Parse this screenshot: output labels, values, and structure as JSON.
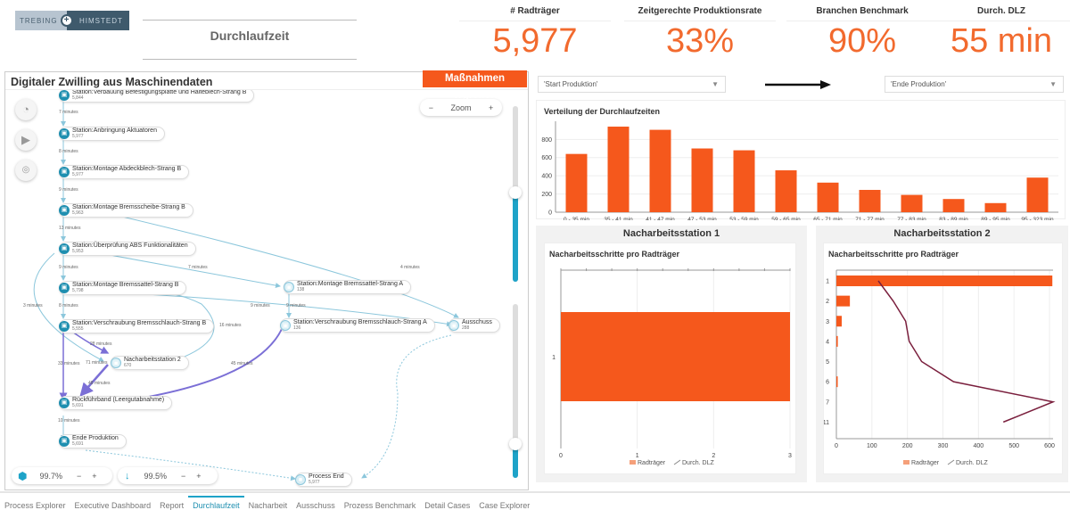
{
  "header": {
    "logo_left": "TREBING",
    "logo_right": "HIMSTEDT",
    "title": "Durchlaufzeit"
  },
  "kpis": [
    {
      "label": "# Radträger",
      "value": "5,977"
    },
    {
      "label": "Zeitgerechte Produktionsrate",
      "value": "33%"
    },
    {
      "label": "Branchen Benchmark",
      "value": "90%"
    },
    {
      "label": "Durch. DLZ",
      "value": "55 min"
    }
  ],
  "process_map": {
    "title": "Digitaler Zwilling aus Maschinendaten",
    "action_button": "Maßnahmen ergreifen",
    "zoom_label": "Zoom",
    "zoom_minus": "−",
    "zoom_plus": "+",
    "activities_pct": "99.7%",
    "paths_pct": "99.5%",
    "nodes": [
      {
        "name": "Station:Verbauung Befestigungsplatte und Halteblech-Strang B",
        "count": "5,844"
      },
      {
        "name": "Station:Anbringung Aktuatoren",
        "count": "5,977"
      },
      {
        "name": "Station:Montage Abdeckblech-Strang B",
        "count": "5,977"
      },
      {
        "name": "Station:Montage Bremsscheibe-Strang B",
        "count": "5,963"
      },
      {
        "name": "Station:Überprüfung ABS Funktionalitäten",
        "count": "5,953"
      },
      {
        "name": "Station:Montage Bremssattel-Strang B",
        "count": "5,798"
      },
      {
        "name": "Station:Verschraubung Bremsschlauch-Strang B",
        "count": "5,555"
      },
      {
        "name": "Nacharbeitsstation 2",
        "count": "670"
      },
      {
        "name": "Rückführband (Leergutabnahme)",
        "count": "5,691"
      },
      {
        "name": "Ende Produktion",
        "count": "5,691"
      },
      {
        "name": "Station:Montage Bremssattel-Strang A",
        "count": "138"
      },
      {
        "name": "Station:Verschraubung Bremsschlauch-Strang A",
        "count": "136"
      },
      {
        "name": "Ausschuss",
        "count": "288"
      },
      {
        "name": "Process End",
        "count": "5,977"
      }
    ],
    "edge_labels": [
      "7 minutes",
      "8 minutes",
      "9 minutes",
      "13 minutes",
      "9 minutes",
      "7 minutes",
      "4 minutes",
      "3 minutes",
      "8 minutes",
      "9 minutes",
      "9 minutes",
      "16 minutes",
      "28 minutes",
      "33 minutes",
      "71 minutes",
      "45 minutes",
      "48 minutes",
      "10 minutes"
    ]
  },
  "filters": {
    "start": "'Start Produktion'",
    "end": "'Ende Produktion'"
  },
  "colors": {
    "accent": "#f5581c",
    "kpi": "#f26a2e",
    "teal": "#1ea3c8",
    "line": "#7a1f3d"
  },
  "chart_data": [
    {
      "type": "bar",
      "title": "Verteilung der Durchlaufzeiten",
      "categories": [
        "0 - 35 min",
        "35 - 41 min",
        "41 - 47 min",
        "47 - 53 min",
        "53 - 59 min",
        "59 - 65 min",
        "65 - 71 min",
        "71 - 77 min",
        "77 - 83 min",
        "83 - 89 min",
        "89 - 95 min",
        "95 - 323 min"
      ],
      "values": [
        640,
        940,
        905,
        700,
        680,
        460,
        325,
        245,
        190,
        145,
        100,
        380
      ],
      "yticks": [
        0,
        200,
        400,
        600,
        800
      ],
      "ylim": [
        0,
        950
      ],
      "grid": true
    },
    {
      "type": "bar",
      "orientation": "horizontal",
      "panel_title": "Nacharbeitsstation 1",
      "title": "Nacharbeitsschritte pro Radträger",
      "categories": [
        "1"
      ],
      "series": [
        {
          "name": "Radträger",
          "values": [
            3
          ]
        }
      ],
      "xticks": [
        0,
        1,
        2,
        3
      ],
      "xlim": [
        0,
        3
      ],
      "legend": [
        "Radträger",
        "Durch. DLZ"
      ],
      "legend_position": "bottom"
    },
    {
      "type": "bar",
      "orientation": "horizontal",
      "panel_title": "Nacharbeitsstation 2",
      "title": "Nacharbeitsschritte pro Radträger",
      "categories": [
        "1",
        "2",
        "3",
        "4",
        "5",
        "6",
        "7",
        "11"
      ],
      "series": [
        {
          "name": "Radträger",
          "type": "bar",
          "values": [
            608,
            38,
            15,
            4,
            0,
            3,
            0,
            0
          ]
        },
        {
          "name": "Durch. DLZ",
          "type": "line",
          "values": [
            118,
            160,
            195,
            205,
            240,
            330,
            610,
            470
          ]
        }
      ],
      "xticks": [
        0,
        100,
        200,
        300,
        400,
        500,
        600
      ],
      "xlim": [
        0,
        610
      ],
      "legend": [
        "Radträger",
        "Durch. DLZ"
      ],
      "legend_position": "bottom"
    }
  ],
  "tabs": [
    {
      "label": "Process Explorer"
    },
    {
      "label": "Executive Dashboard"
    },
    {
      "label": "Report"
    },
    {
      "label": "Durchlaufzeit",
      "active": true
    },
    {
      "label": "Nacharbeit"
    },
    {
      "label": "Ausschuss"
    },
    {
      "label": "Prozess Benchmark"
    },
    {
      "label": "Detail Cases"
    },
    {
      "label": "Case Explorer"
    }
  ]
}
